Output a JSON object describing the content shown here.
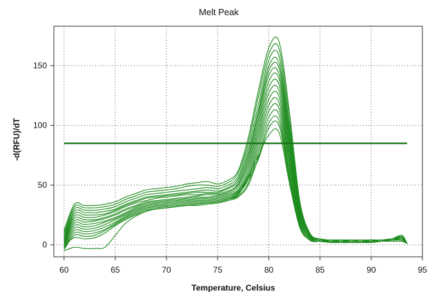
{
  "chart_data": {
    "type": "line",
    "title": "Melt Peak",
    "xlabel": "Temperature, Celsius",
    "ylabel": "-d(RFU)/dT",
    "xlim": [
      59,
      95
    ],
    "ylim": [
      -10,
      183
    ],
    "xticks": [
      60,
      65,
      70,
      75,
      80,
      85,
      90,
      95
    ],
    "yticks": [
      0,
      50,
      100,
      150
    ],
    "grid": true,
    "legend": "none",
    "line_color": "#1e8c1e",
    "threshold": {
      "y": 85,
      "x_range": [
        60,
        93.5
      ],
      "color": "#197519"
    },
    "x_grid_temps": [
      60,
      61,
      62,
      63,
      64,
      65,
      66,
      67,
      68,
      69,
      70,
      71,
      72,
      73,
      74,
      75,
      76,
      77,
      78,
      79,
      80,
      81,
      82,
      83,
      84,
      85,
      86,
      87,
      88,
      89,
      90,
      91,
      92,
      93,
      93.5
    ],
    "series": [
      {
        "values": [
          12,
          34,
          33,
          33,
          34,
          36,
          40,
          43,
          46,
          47,
          48,
          49,
          51,
          52,
          53,
          51,
          54,
          62,
          90,
          130,
          165,
          170,
          112,
          38,
          10,
          5,
          4,
          4,
          4,
          4,
          4,
          4,
          5,
          8,
          1
        ]
      },
      {
        "values": [
          10,
          32,
          31,
          31,
          32,
          34,
          38,
          41,
          44,
          45,
          46,
          47,
          49,
          50,
          50,
          49,
          52,
          60,
          86,
          125,
          160,
          164,
          106,
          35,
          9,
          5,
          4,
          4,
          4,
          4,
          4,
          4,
          5,
          7,
          1
        ]
      },
      {
        "values": [
          8,
          30,
          29,
          29,
          30,
          32,
          36,
          39,
          42,
          43,
          44,
          45,
          46,
          47,
          48,
          47,
          50,
          57,
          82,
          118,
          155,
          158,
          100,
          33,
          9,
          5,
          4,
          4,
          4,
          3,
          4,
          4,
          5,
          7,
          1
        ]
      },
      {
        "values": [
          6,
          28,
          27,
          27,
          28,
          30,
          34,
          37,
          40,
          41,
          42,
          43,
          44,
          45,
          46,
          45,
          48,
          55,
          78,
          113,
          150,
          152,
          96,
          31,
          8,
          5,
          4,
          4,
          3,
          3,
          4,
          4,
          5,
          6,
          1
        ]
      },
      {
        "values": [
          5,
          26,
          25,
          25,
          26,
          29,
          33,
          36,
          39,
          40,
          41,
          42,
          43,
          44,
          44,
          44,
          47,
          53,
          75,
          110,
          146,
          148,
          92,
          30,
          8,
          4,
          4,
          4,
          3,
          3,
          3,
          4,
          5,
          6,
          1
        ]
      },
      {
        "values": [
          4,
          24,
          23,
          23,
          25,
          28,
          32,
          35,
          37,
          39,
          40,
          41,
          42,
          42,
          43,
          43,
          45,
          51,
          72,
          106,
          142,
          143,
          88,
          28,
          7,
          4,
          4,
          3,
          3,
          3,
          3,
          4,
          4,
          6,
          1
        ]
      },
      {
        "values": [
          3,
          22,
          21,
          21,
          23,
          26,
          30,
          33,
          36,
          37,
          38,
          39,
          40,
          41,
          42,
          42,
          44,
          50,
          69,
          102,
          137,
          139,
          84,
          27,
          7,
          4,
          3,
          3,
          3,
          3,
          3,
          4,
          4,
          5,
          1
        ]
      },
      {
        "values": [
          2,
          20,
          19,
          20,
          22,
          25,
          29,
          32,
          35,
          36,
          37,
          38,
          39,
          40,
          40,
          41,
          43,
          48,
          66,
          98,
          132,
          134,
          80,
          25,
          6,
          4,
          3,
          3,
          3,
          3,
          3,
          3,
          4,
          5,
          1
        ]
      },
      {
        "values": [
          1,
          18,
          17,
          18,
          20,
          23,
          27,
          31,
          34,
          35,
          36,
          37,
          38,
          39,
          39,
          40,
          42,
          46,
          63,
          94,
          127,
          129,
          76,
          24,
          6,
          4,
          3,
          3,
          3,
          3,
          3,
          3,
          4,
          5,
          1
        ]
      },
      {
        "values": [
          0,
          16,
          15,
          16,
          19,
          22,
          26,
          30,
          33,
          34,
          35,
          36,
          37,
          38,
          38,
          39,
          41,
          45,
          60,
          90,
          122,
          124,
          72,
          22,
          5,
          3,
          3,
          3,
          3,
          3,
          3,
          3,
          4,
          4,
          1
        ]
      },
      {
        "values": [
          -1,
          14,
          13,
          14,
          17,
          21,
          25,
          29,
          32,
          33,
          34,
          35,
          36,
          37,
          37,
          38,
          40,
          44,
          57,
          86,
          117,
          119,
          68,
          21,
          5,
          3,
          3,
          3,
          2,
          2,
          3,
          3,
          4,
          4,
          1
        ]
      },
      {
        "values": [
          -2,
          12,
          11,
          12,
          15,
          19,
          24,
          28,
          31,
          32,
          33,
          34,
          35,
          36,
          36,
          37,
          39,
          43,
          55,
          82,
          112,
          114,
          64,
          20,
          5,
          3,
          3,
          2,
          2,
          2,
          2,
          3,
          4,
          4,
          1
        ]
      },
      {
        "values": [
          -3,
          10,
          9,
          10,
          13,
          18,
          23,
          27,
          30,
          31,
          32,
          33,
          34,
          35,
          35,
          36,
          38,
          41,
          52,
          78,
          107,
          109,
          60,
          18,
          4,
          3,
          2,
          2,
          2,
          2,
          2,
          3,
          4,
          4,
          1
        ]
      },
      {
        "values": [
          -4,
          8,
          7,
          8,
          12,
          17,
          22,
          26,
          29,
          30,
          31,
          32,
          33,
          33,
          34,
          35,
          37,
          40,
          50,
          74,
          102,
          104,
          57,
          17,
          4,
          3,
          2,
          2,
          2,
          2,
          2,
          3,
          3,
          3,
          1
        ]
      },
      {
        "values": [
          -5,
          -2,
          -3,
          -3,
          -2,
          8,
          18,
          24,
          28,
          30,
          31,
          32,
          33,
          34,
          35,
          36,
          38,
          42,
          55,
          72,
          98,
          100,
          55,
          16,
          4,
          3,
          2,
          2,
          2,
          2,
          2,
          3,
          3,
          3,
          1
        ]
      },
      {
        "values": [
          0,
          6,
          5,
          6,
          10,
          16,
          21,
          25,
          28,
          30,
          31,
          32,
          33,
          34,
          35,
          36,
          38,
          43,
          58,
          75,
          92,
          94,
          52,
          15,
          4,
          3,
          2,
          2,
          2,
          2,
          2,
          3,
          3,
          3,
          1
        ]
      }
    ]
  }
}
